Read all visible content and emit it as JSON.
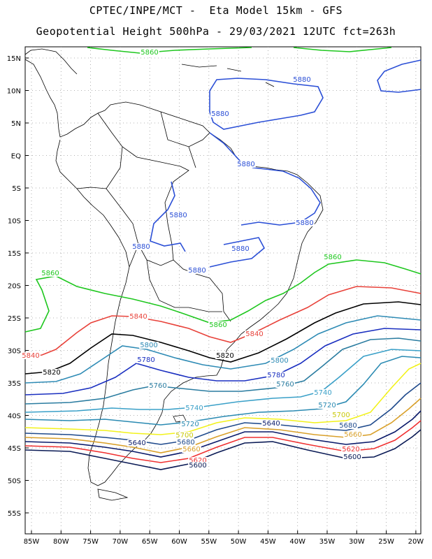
{
  "title_line1": "CPTEC/INPE/MCT -  Eta Model 15km - GFS",
  "title_line2": "Geopotential Height 500hPa - 29/03/2021 12UTC fct=263h",
  "lat_labels": [
    "15N",
    "10N",
    "5N",
    "EQ",
    "5S",
    "10S",
    "15S",
    "20S",
    "25S",
    "30S",
    "35S",
    "40S",
    "45S",
    "50S",
    "55S"
  ],
  "lon_labels": [
    "85W",
    "80W",
    "75W",
    "70W",
    "65W",
    "60W",
    "55W",
    "50W",
    "45W",
    "40W",
    "35W",
    "30W",
    "25W",
    "20W"
  ],
  "contour_colors": {
    "5880": "#2b4fd6",
    "5860": "#1fc71f",
    "5840": "#e8423a",
    "5820": "#000000",
    "5800": "#2e8bb5",
    "5780": "#1a2fc0",
    "5760": "#2a7ca0",
    "5740": "#3aa0c8",
    "5720": "#2a8ab2",
    "5700": "#f2f21a",
    "5680": "#1f4a8c",
    "5660": "#d9a02a",
    "5640": "#0a1a6a",
    "5620": "#f03030",
    "5600": "#0a1a55"
  },
  "contour_labels": [
    {
      "text": "5880",
      "level": "5880"
    },
    {
      "text": "5880",
      "level": "5880"
    },
    {
      "text": "5880",
      "level": "5880"
    },
    {
      "text": "5880",
      "level": "5880"
    },
    {
      "text": "5880",
      "level": "5880"
    },
    {
      "text": "5880",
      "level": "5880"
    },
    {
      "text": "5880",
      "level": "5880"
    },
    {
      "text": "5880",
      "level": "5880"
    },
    {
      "text": "5860",
      "level": "5860"
    },
    {
      "text": "5860",
      "level": "5860"
    },
    {
      "text": "5860",
      "level": "5860"
    },
    {
      "text": "5860",
      "level": "5860"
    },
    {
      "text": "5840",
      "level": "5840"
    },
    {
      "text": "5840",
      "level": "5840"
    },
    {
      "text": "5840",
      "level": "5840"
    },
    {
      "text": "5820",
      "level": "5820"
    },
    {
      "text": "5820",
      "level": "5820"
    },
    {
      "text": "5800",
      "level": "5800"
    },
    {
      "text": "5800",
      "level": "5800"
    },
    {
      "text": "5780",
      "level": "5780"
    },
    {
      "text": "5780",
      "level": "5780"
    },
    {
      "text": "5760",
      "level": "5760"
    },
    {
      "text": "5760",
      "level": "5760"
    },
    {
      "text": "5740",
      "level": "5740"
    },
    {
      "text": "5740",
      "level": "5740"
    },
    {
      "text": "5720",
      "level": "5720"
    },
    {
      "text": "5720",
      "level": "5720"
    },
    {
      "text": "5700",
      "level": "5700"
    },
    {
      "text": "5700",
      "level": "5700"
    },
    {
      "text": "5680",
      "level": "5680"
    },
    {
      "text": "5680",
      "level": "5680"
    },
    {
      "text": "5660",
      "level": "5660"
    },
    {
      "text": "5660",
      "level": "5660"
    },
    {
      "text": "5640",
      "level": "5640"
    },
    {
      "text": "5640",
      "level": "5640"
    },
    {
      "text": "5620",
      "level": "5620"
    },
    {
      "text": "5620",
      "level": "5620"
    },
    {
      "text": "5600",
      "level": "5600"
    },
    {
      "text": "5600",
      "level": "5600"
    }
  ]
}
